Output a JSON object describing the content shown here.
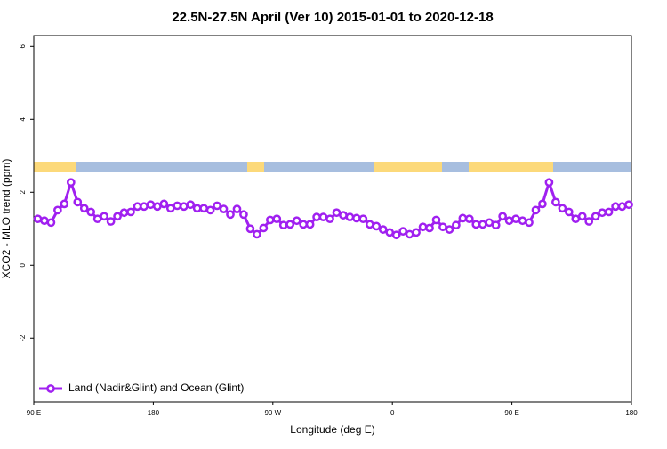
{
  "chart_data": {
    "type": "line",
    "title": "22.5N-27.5N April (Ver 10)   2015-01-01 to 2020-12-18",
    "x_label": "Longitude (deg E)",
    "y_label": "XCO2 - MLO trend (ppm)",
    "x": [
      93,
      98,
      103,
      108,
      113,
      118,
      123,
      128,
      133,
      138,
      143,
      148,
      153,
      158,
      163,
      168,
      173,
      178,
      183,
      188,
      193,
      198,
      203,
      208,
      213,
      218,
      223,
      228,
      233,
      238,
      243,
      248,
      253,
      258,
      263,
      268,
      273,
      278,
      283,
      288,
      293,
      298,
      303,
      308,
      313,
      318,
      323,
      328,
      333,
      338,
      343,
      348,
      353,
      358,
      363,
      368,
      373,
      378,
      383,
      388,
      393,
      398,
      403,
      408,
      413,
      418,
      423,
      428,
      433,
      438,
      443,
      448,
      453,
      458,
      463,
      468,
      473,
      478,
      483,
      488,
      493,
      498,
      503,
      508,
      513,
      518,
      523,
      528,
      533,
      538
    ],
    "series": [
      {
        "name": "Land (Nadir&Glint) and Ocean (Glint)",
        "color": "#a020f0",
        "values": [
          1.27,
          1.22,
          1.17,
          1.51,
          1.68,
          2.27,
          1.73,
          1.56,
          1.46,
          1.27,
          1.34,
          1.2,
          1.34,
          1.44,
          1.46,
          1.61,
          1.61,
          1.66,
          1.61,
          1.68,
          1.56,
          1.63,
          1.61,
          1.66,
          1.56,
          1.56,
          1.51,
          1.63,
          1.54,
          1.39,
          1.54,
          1.39,
          1.0,
          0.85,
          1.02,
          1.24,
          1.27,
          1.1,
          1.12,
          1.22,
          1.12,
          1.12,
          1.32,
          1.32,
          1.27,
          1.44,
          1.37,
          1.32,
          1.29,
          1.27,
          1.12,
          1.07,
          0.98,
          0.9,
          0.83,
          0.93,
          0.85,
          0.9,
          1.05,
          1.02,
          1.24,
          1.05,
          0.98,
          1.1,
          1.29,
          1.27,
          1.12,
          1.12,
          1.17,
          1.1,
          1.34,
          1.22,
          1.27,
          1.22,
          1.17,
          1.51,
          1.68,
          2.27,
          1.73,
          1.56,
          1.46,
          1.27,
          1.34,
          1.2,
          1.34,
          1.44,
          1.46,
          1.61,
          1.61,
          1.66
        ]
      }
    ],
    "xlim": [
      90,
      540
    ],
    "xticks": [
      {
        "value": 90,
        "label": "90 E"
      },
      180,
      {
        "value": 270,
        "label": "90 W"
      },
      {
        "value": 360,
        "label": "0"
      },
      {
        "value": 450,
        "label": "90 E"
      },
      {
        "value": 540,
        "label": "180"
      }
    ],
    "ylim": [
      -3.75,
      6.3
    ],
    "yticks": [
      -2,
      0,
      2,
      4,
      6
    ],
    "legend": "bottom-left"
  }
}
